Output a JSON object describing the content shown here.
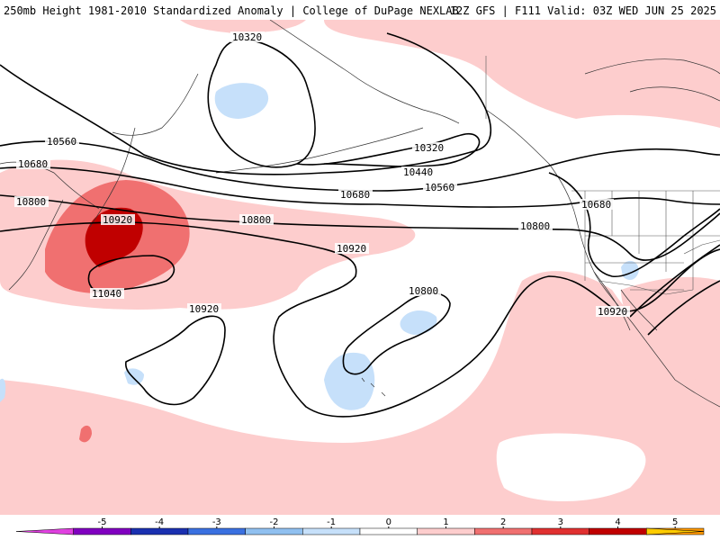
{
  "header": {
    "title": "250mb Height 1981-2010 Standardized Anomaly | College of DuPage NEXLAB",
    "run_info": "12Z GFS | F111 Valid: 03Z WED JUN 25 2025"
  },
  "colors": {
    "anom_pos1": "#fdcdcd",
    "anom_pos2": "#f07070",
    "anom_pos3": "#c00000",
    "anom_neg1": "#c6e0fa"
  },
  "contours": [
    {
      "label": "10320",
      "id": "c10320a"
    },
    {
      "label": "10320",
      "id": "c10320b"
    },
    {
      "label": "10440",
      "id": "c10440"
    },
    {
      "label": "10560",
      "id": "c10560a"
    },
    {
      "label": "10560",
      "id": "c10560b"
    },
    {
      "label": "10680",
      "id": "c10680a"
    },
    {
      "label": "10680",
      "id": "c10680b"
    },
    {
      "label": "10680",
      "id": "c10680c"
    },
    {
      "label": "10800",
      "id": "c10800a"
    },
    {
      "label": "10800",
      "id": "c10800b"
    },
    {
      "label": "10800",
      "id": "c10800c"
    },
    {
      "label": "10800",
      "id": "c10800d"
    },
    {
      "label": "10920",
      "id": "c10920a"
    },
    {
      "label": "10920",
      "id": "c10920b"
    },
    {
      "label": "10920",
      "id": "c10920c"
    },
    {
      "label": "10920",
      "id": "c10920d"
    },
    {
      "label": "11040",
      "id": "c11040"
    }
  ],
  "colorbar": {
    "ticks": [
      "-5",
      "-4",
      "-3",
      "-2",
      "-1",
      "0",
      "1",
      "2",
      "3",
      "4",
      "5"
    ],
    "colors": [
      "#e040e0",
      "#8000c0",
      "#1a30b0",
      "#3a70e0",
      "#90c0f0",
      "#c6e0fa",
      "#ffffff",
      "#fdcdcd",
      "#f07070",
      "#e03030",
      "#c00000",
      "#ff9900",
      "#ffcc00"
    ]
  }
}
